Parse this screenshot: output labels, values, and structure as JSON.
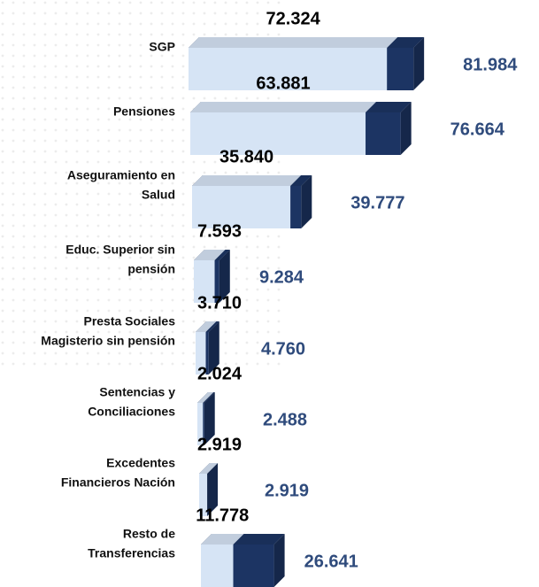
{
  "chart_data": {
    "type": "bar",
    "categories": [
      [
        "SGP"
      ],
      [
        "Pensiones"
      ],
      [
        "Aseguramiento en",
        "Salud"
      ],
      [
        "Educ. Superior sin",
        "pensión"
      ],
      [
        "Presta Sociales",
        "Magisterio sin pensión"
      ],
      [
        "Sentencias y",
        "Conciliaciones"
      ],
      [
        "Excedentes",
        "Financieros Nación"
      ],
      [
        "Resto de",
        "Transferencias"
      ]
    ],
    "series": [
      {
        "color": "#d6e4f5",
        "values": [
          72324,
          63881,
          35840,
          7593,
          3710,
          2024,
          2919,
          11778
        ],
        "value_labels": [
          "72.324",
          "63.881",
          "35.840",
          "7.593",
          "3.710",
          "2.024",
          "2.919",
          "11.778"
        ]
      },
      {
        "color": "#1c3463",
        "values": [
          81984,
          76664,
          39777,
          9284,
          4760,
          2488,
          2919,
          26641
        ],
        "value_labels": [
          "81.984",
          "76.664",
          "39.777",
          "9.284",
          "4.760",
          "2.488",
          "2.919",
          "26.641"
        ]
      }
    ]
  }
}
